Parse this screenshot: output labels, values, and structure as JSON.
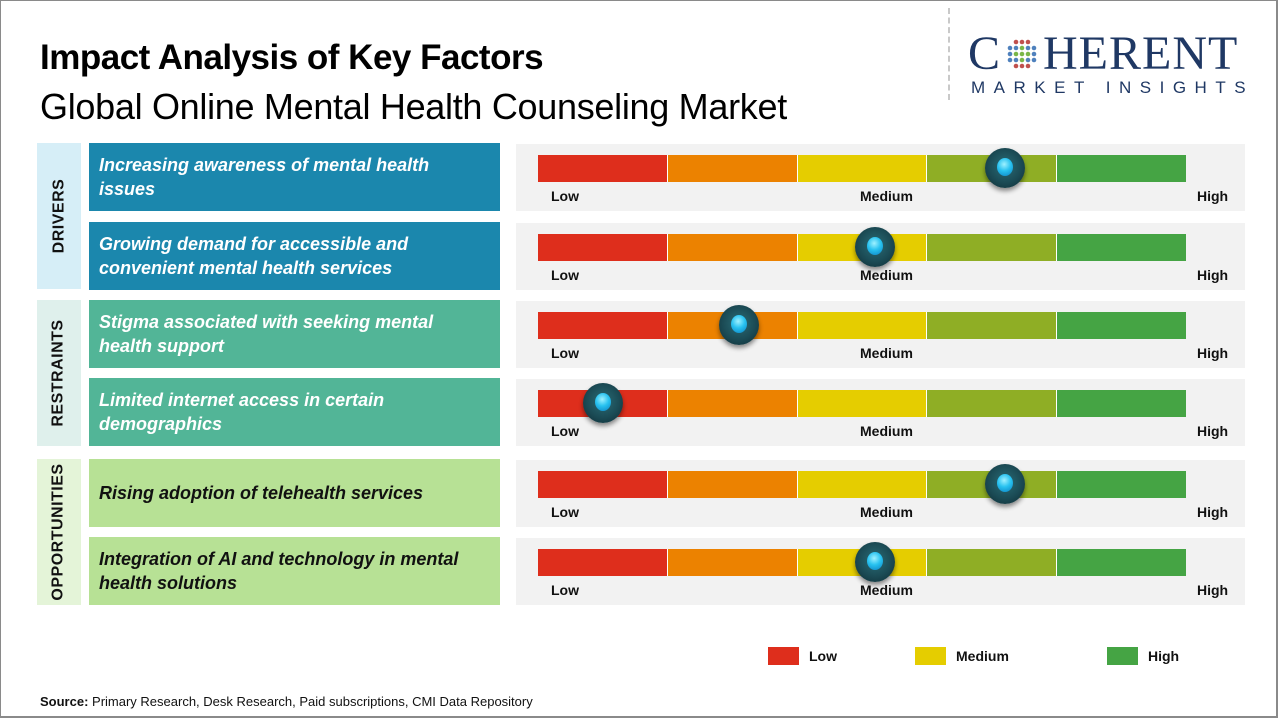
{
  "header": {
    "title": "Impact Analysis of Key Factors",
    "subtitle": "Global Online Mental Health Counseling Market"
  },
  "logo": {
    "top_text_left": "C",
    "top_text_right": "HERENT",
    "bottom_text": "MARKET INSIGHTS",
    "full_name": "COHERENT MARKET INSIGHTS"
  },
  "scale": {
    "low": "Low",
    "medium": "Medium",
    "high": "High",
    "segment_colors": [
      "#de2e1c",
      "#ec8200",
      "#e5cd00",
      "#8fae25",
      "#45a444"
    ]
  },
  "categories": [
    {
      "name": "DRIVERS",
      "panel_color": "#d6eef7",
      "box_color": "#1b87ad",
      "text_color": "#ffffff"
    },
    {
      "name": "RESTRAINTS",
      "panel_color": "#dff0ec",
      "box_color": "#52b597",
      "text_color": "#ffffff"
    },
    {
      "name": "OPPORTUNITIES",
      "panel_color": "#e4f4d8",
      "box_color": "#b7e195",
      "text_color": "#111111"
    }
  ],
  "chart_data": {
    "type": "table",
    "title": "Impact Analysis of Key Factors",
    "subtitle": "Global Online Mental Health Counseling Market",
    "scale_labels": [
      "Low",
      "Medium",
      "High"
    ],
    "scale_range": [
      0,
      1
    ],
    "rows": [
      {
        "category": "DRIVERS",
        "factor": "Increasing awareness of mental health issues",
        "impact": 0.72
      },
      {
        "category": "DRIVERS",
        "factor": "Growing demand for accessible and convenient mental health services",
        "impact": 0.52
      },
      {
        "category": "RESTRAINTS",
        "factor": "Stigma associated with seeking mental health support",
        "impact": 0.31
      },
      {
        "category": "RESTRAINTS",
        "factor": "Limited internet access in certain demographics",
        "impact": 0.1
      },
      {
        "category": "OPPORTUNITIES",
        "factor": "Rising adoption of telehealth services",
        "impact": 0.72
      },
      {
        "category": "OPPORTUNITIES",
        "factor": "Integration of AI and technology in mental health solutions",
        "impact": 0.52
      }
    ],
    "legend": [
      {
        "label": "Low",
        "color": "#de2e1c"
      },
      {
        "label": "Medium",
        "color": "#e5cd00"
      },
      {
        "label": "High",
        "color": "#45a444"
      }
    ]
  },
  "footer": {
    "source_label": "Source:",
    "source_text": " Primary Research, Desk Research, Paid subscriptions, CMI Data Repository"
  }
}
